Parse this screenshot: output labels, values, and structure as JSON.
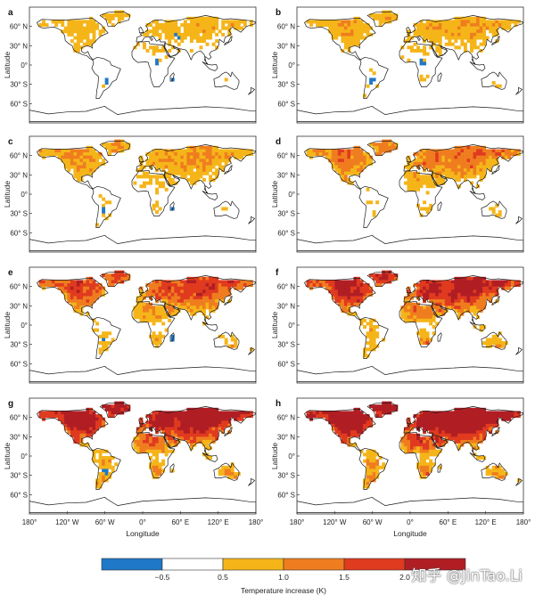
{
  "chart_data": {
    "type": "heatmap",
    "panels": [
      {
        "label": "a",
        "intensity": 0.25,
        "cool_regions": [
          "central-africa",
          "south-america",
          "madagascar",
          "central-asia"
        ]
      },
      {
        "label": "b",
        "intensity": 0.3,
        "cool_regions": [
          "central-africa",
          "south-america",
          "madagascar"
        ]
      },
      {
        "label": "c",
        "intensity": 0.35,
        "cool_regions": [
          "south-america",
          "madagascar"
        ]
      },
      {
        "label": "d",
        "intensity": 0.45,
        "cool_regions": []
      },
      {
        "label": "e",
        "intensity": 0.6,
        "cool_regions": [
          "south-america",
          "madagascar"
        ]
      },
      {
        "label": "f",
        "intensity": 0.75,
        "cool_regions": []
      },
      {
        "label": "g",
        "intensity": 0.85,
        "cool_regions": [
          "south-america"
        ]
      },
      {
        "label": "h",
        "intensity": 0.95,
        "cool_regions": []
      }
    ],
    "ylabel": "Latitude",
    "xlabel": "Longitude",
    "y_ticks": [
      "60° N",
      "30° N",
      "0°",
      "30° S",
      "60° S"
    ],
    "y_tick_values": [
      60,
      30,
      0,
      -30,
      -60
    ],
    "x_ticks": [
      "180°",
      "120° W",
      "60° W",
      "0°",
      "60° E",
      "120° E",
      "180°"
    ],
    "x_tick_values": [
      -180,
      -120,
      -60,
      0,
      60,
      120,
      180
    ],
    "xlim": [
      -180,
      180
    ],
    "ylim": [
      -90,
      90
    ],
    "colorbar": {
      "label": "Temperature increase (K)",
      "tick_labels": [
        "−0.5",
        "0.5",
        "1.0",
        "1.5",
        "2.0"
      ],
      "bins": [
        {
          "color": "#1f78c8"
        },
        {
          "color": "#ffffff"
        },
        {
          "color": "#f5b519"
        },
        {
          "color": "#ef7d1f"
        },
        {
          "color": "#e03a1f"
        },
        {
          "color": "#b01e24"
        }
      ]
    },
    "legend": "bottom"
  },
  "watermark": "知乎 @JinTao.Li"
}
